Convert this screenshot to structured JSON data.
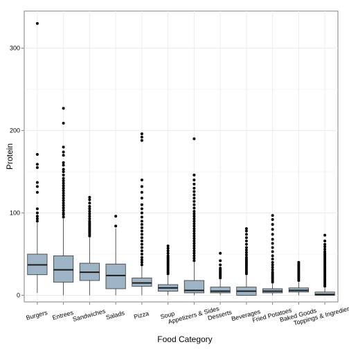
{
  "chart_data": {
    "type": "box",
    "xlabel": "Food Category",
    "ylabel": "Protein",
    "ylim": [
      -8,
      345
    ],
    "yticks": [
      0,
      100,
      200,
      300
    ],
    "grid": true,
    "legend": "none",
    "box_fill": "#9db4c4",
    "box_stroke": "#333333",
    "median_color": "#1a1a1a",
    "outlier_color": "#000000",
    "panel_border": "#7f7f7f",
    "grid_color": "#ececec",
    "categories": [
      "Burgers",
      "Entrees",
      "Sandwiches",
      "Salads",
      "Pizza",
      "Soup",
      "Appetizers & Sides",
      "Desserts",
      "Beverages",
      "Fried Potatoes",
      "Baked Goods",
      "Toppings & Ingredients"
    ],
    "boxes": [
      {
        "category": "Burgers",
        "whisker_low": 3,
        "q1": 25,
        "median": 37,
        "q3": 50,
        "whisker_high": 88,
        "outliers": [
          90,
          93,
          96,
          100,
          105,
          125,
          132,
          137,
          155,
          159,
          171,
          330
        ]
      },
      {
        "category": "Entrees",
        "whisker_low": 0,
        "q1": 16,
        "median": 31,
        "q3": 48,
        "whisker_high": 93,
        "outliers": [
          95,
          98,
          100,
          103,
          106,
          109,
          112,
          115,
          118,
          121,
          124,
          127,
          130,
          133,
          136,
          139,
          142,
          146,
          150,
          153,
          158,
          161,
          170,
          174,
          180,
          209,
          227
        ]
      },
      {
        "category": "Sandwiches",
        "whisker_low": 0,
        "q1": 18,
        "median": 28,
        "q3": 39,
        "whisker_high": 70,
        "outliers": [
          72,
          74,
          76,
          78,
          80,
          82,
          84,
          86,
          88,
          90,
          93,
          96,
          99,
          102,
          105,
          108,
          112,
          116,
          119
        ]
      },
      {
        "category": "Salads",
        "whisker_low": 0,
        "q1": 8,
        "median": 24,
        "q3": 38,
        "whisker_high": 81,
        "outliers": [
          84,
          96
        ]
      },
      {
        "category": "Pizza",
        "whisker_low": 0,
        "q1": 11,
        "median": 15,
        "q3": 21,
        "whisker_high": 35,
        "outliers": [
          37,
          40,
          43,
          46,
          50,
          54,
          58,
          62,
          66,
          70,
          74,
          78,
          82,
          86,
          90,
          95,
          100,
          105,
          110,
          118,
          125,
          132,
          140,
          188,
          192,
          196
        ]
      },
      {
        "category": "Soup",
        "whisker_low": 0,
        "q1": 5,
        "median": 9,
        "q3": 13,
        "whisker_high": 24,
        "outliers": [
          26,
          28,
          30,
          32,
          34,
          36,
          38,
          40,
          42,
          44,
          46,
          48,
          51,
          54,
          57,
          60
        ]
      },
      {
        "category": "Appetizers & Sides",
        "whisker_low": 0,
        "q1": 3,
        "median": 6,
        "q3": 18,
        "whisker_high": 40,
        "outliers": [
          42,
          45,
          48,
          51,
          54,
          57,
          60,
          63,
          66,
          69,
          72,
          75,
          78,
          81,
          84,
          87,
          90,
          93,
          96,
          99,
          102,
          106,
          110,
          114,
          118,
          122,
          126,
          130,
          135,
          140,
          146,
          190
        ]
      },
      {
        "category": "Desserts",
        "whisker_low": 0,
        "q1": 3,
        "median": 5,
        "q3": 10,
        "whisker_high": 19,
        "outliers": [
          21,
          23,
          25,
          27,
          29,
          31,
          33,
          37,
          42,
          51
        ]
      },
      {
        "category": "Beverages",
        "whisker_low": 0,
        "q1": 0,
        "median": 5,
        "q3": 10,
        "whisker_high": 24,
        "outliers": [
          26,
          28,
          30,
          32,
          34,
          36,
          38,
          40,
          42,
          44,
          46,
          49,
          52,
          55,
          58,
          62,
          66,
          70,
          74,
          78,
          81
        ]
      },
      {
        "category": "Fried Potatoes",
        "whisker_low": 0,
        "q1": 3,
        "median": 5,
        "q3": 8,
        "whisker_high": 14,
        "outliers": [
          16,
          18,
          20,
          22,
          24,
          26,
          28,
          31,
          34,
          37,
          40,
          44,
          48,
          53,
          58,
          63,
          68,
          74,
          80,
          86,
          92,
          97
        ]
      },
      {
        "category": "Baked Goods",
        "whisker_low": 0,
        "q1": 4,
        "median": 6,
        "q3": 9,
        "whisker_high": 16,
        "outliers": [
          18,
          20,
          22,
          24,
          26,
          28,
          30,
          32,
          34,
          36,
          38,
          40
        ]
      },
      {
        "category": "Toppings & Ingredients",
        "whisker_low": 0,
        "q1": 0,
        "median": 1,
        "q3": 4,
        "whisker_high": 9,
        "outliers": [
          11,
          13,
          15,
          17,
          19,
          21,
          23,
          25,
          27,
          29,
          31,
          33,
          35,
          37,
          39,
          41,
          43,
          45,
          47,
          49,
          51,
          53,
          56,
          59,
          62,
          66,
          73
        ]
      }
    ]
  }
}
